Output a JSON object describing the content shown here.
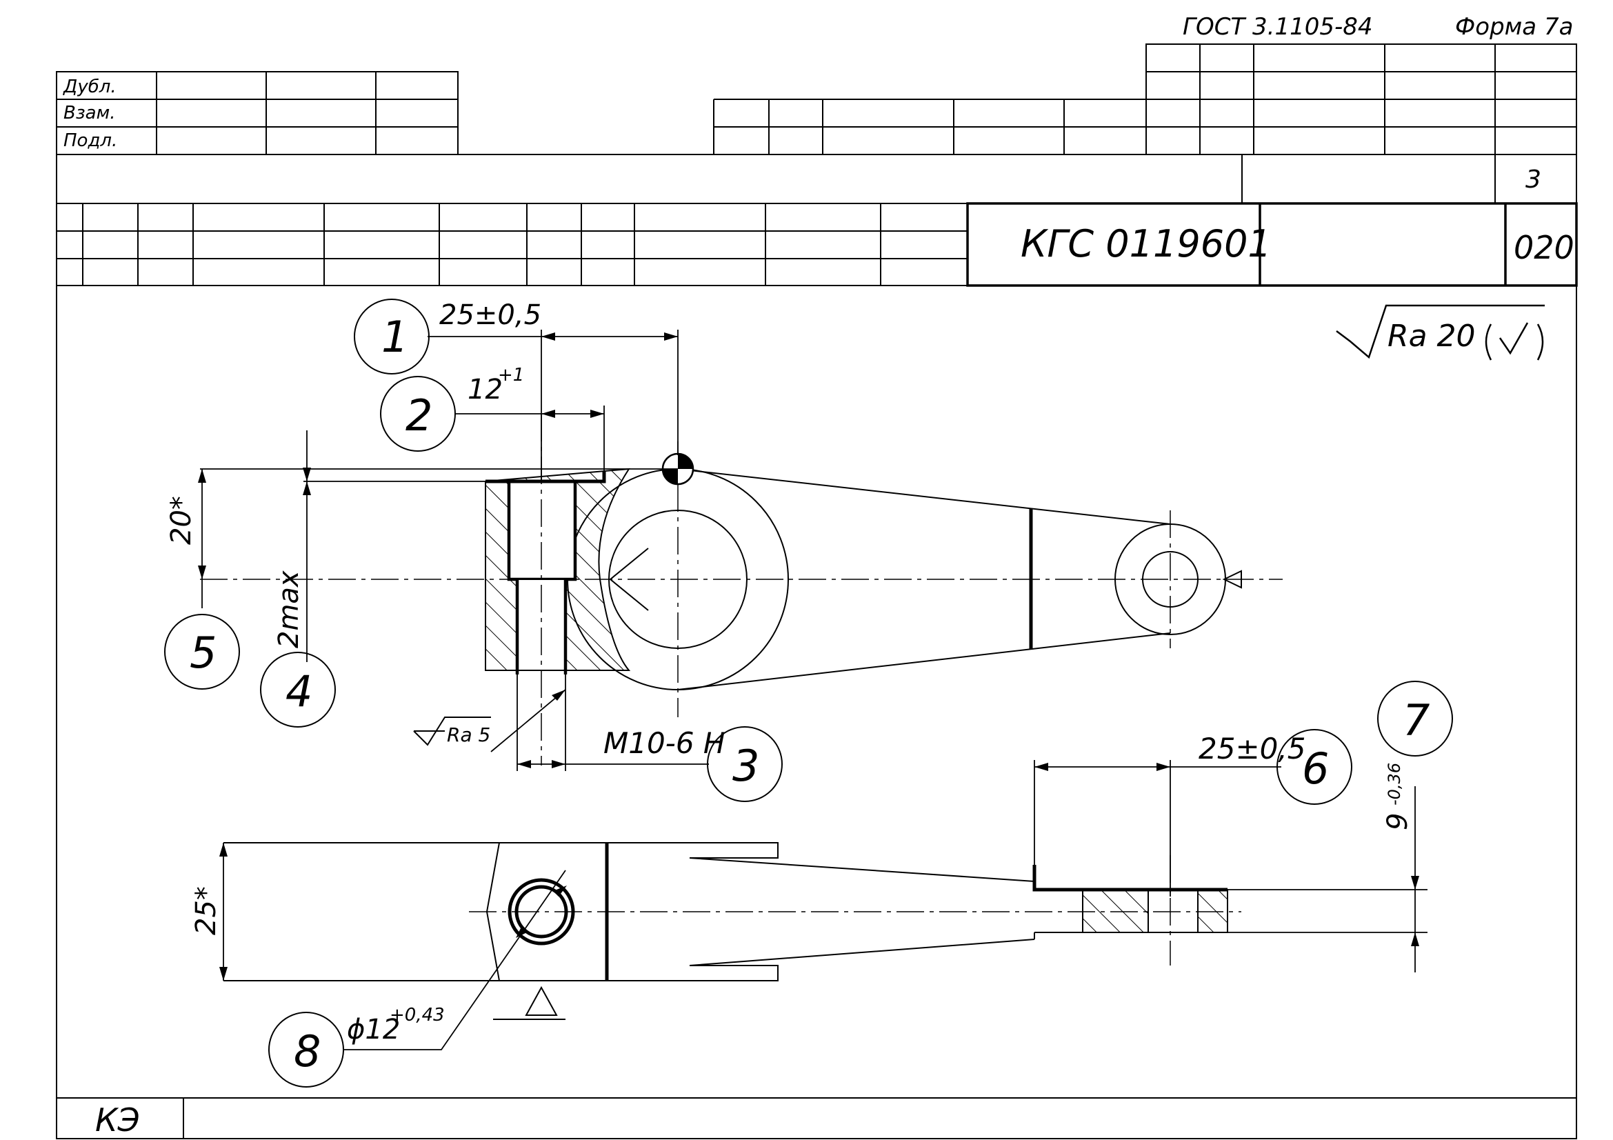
{
  "header": {
    "standard": "ГОСТ 3.1105-84",
    "form": "Форма 7а",
    "sheet_number": "3",
    "document_code": "КГС 0119601",
    "operation_number": "020"
  },
  "stamp_rows": [
    "Дубл.",
    "Взам.",
    "Подл."
  ],
  "roughness": {
    "general": "Ra 20",
    "local": "Ra 5"
  },
  "dimensions": {
    "d1": "25±0,5",
    "d2_base": "12",
    "d2_tol": "+1",
    "d3": "М10-6 Н",
    "d4": "2max",
    "d5": "20*",
    "d6": "25±0,5",
    "d7_base": "9",
    "d7_tol": "-0,36",
    "d8_base": "ϕ12",
    "d8_tol": "+0,43",
    "d_width": "25*"
  },
  "callouts": [
    "1",
    "2",
    "3",
    "4",
    "5",
    "6",
    "7",
    "8"
  ],
  "footer_label": "КЭ"
}
